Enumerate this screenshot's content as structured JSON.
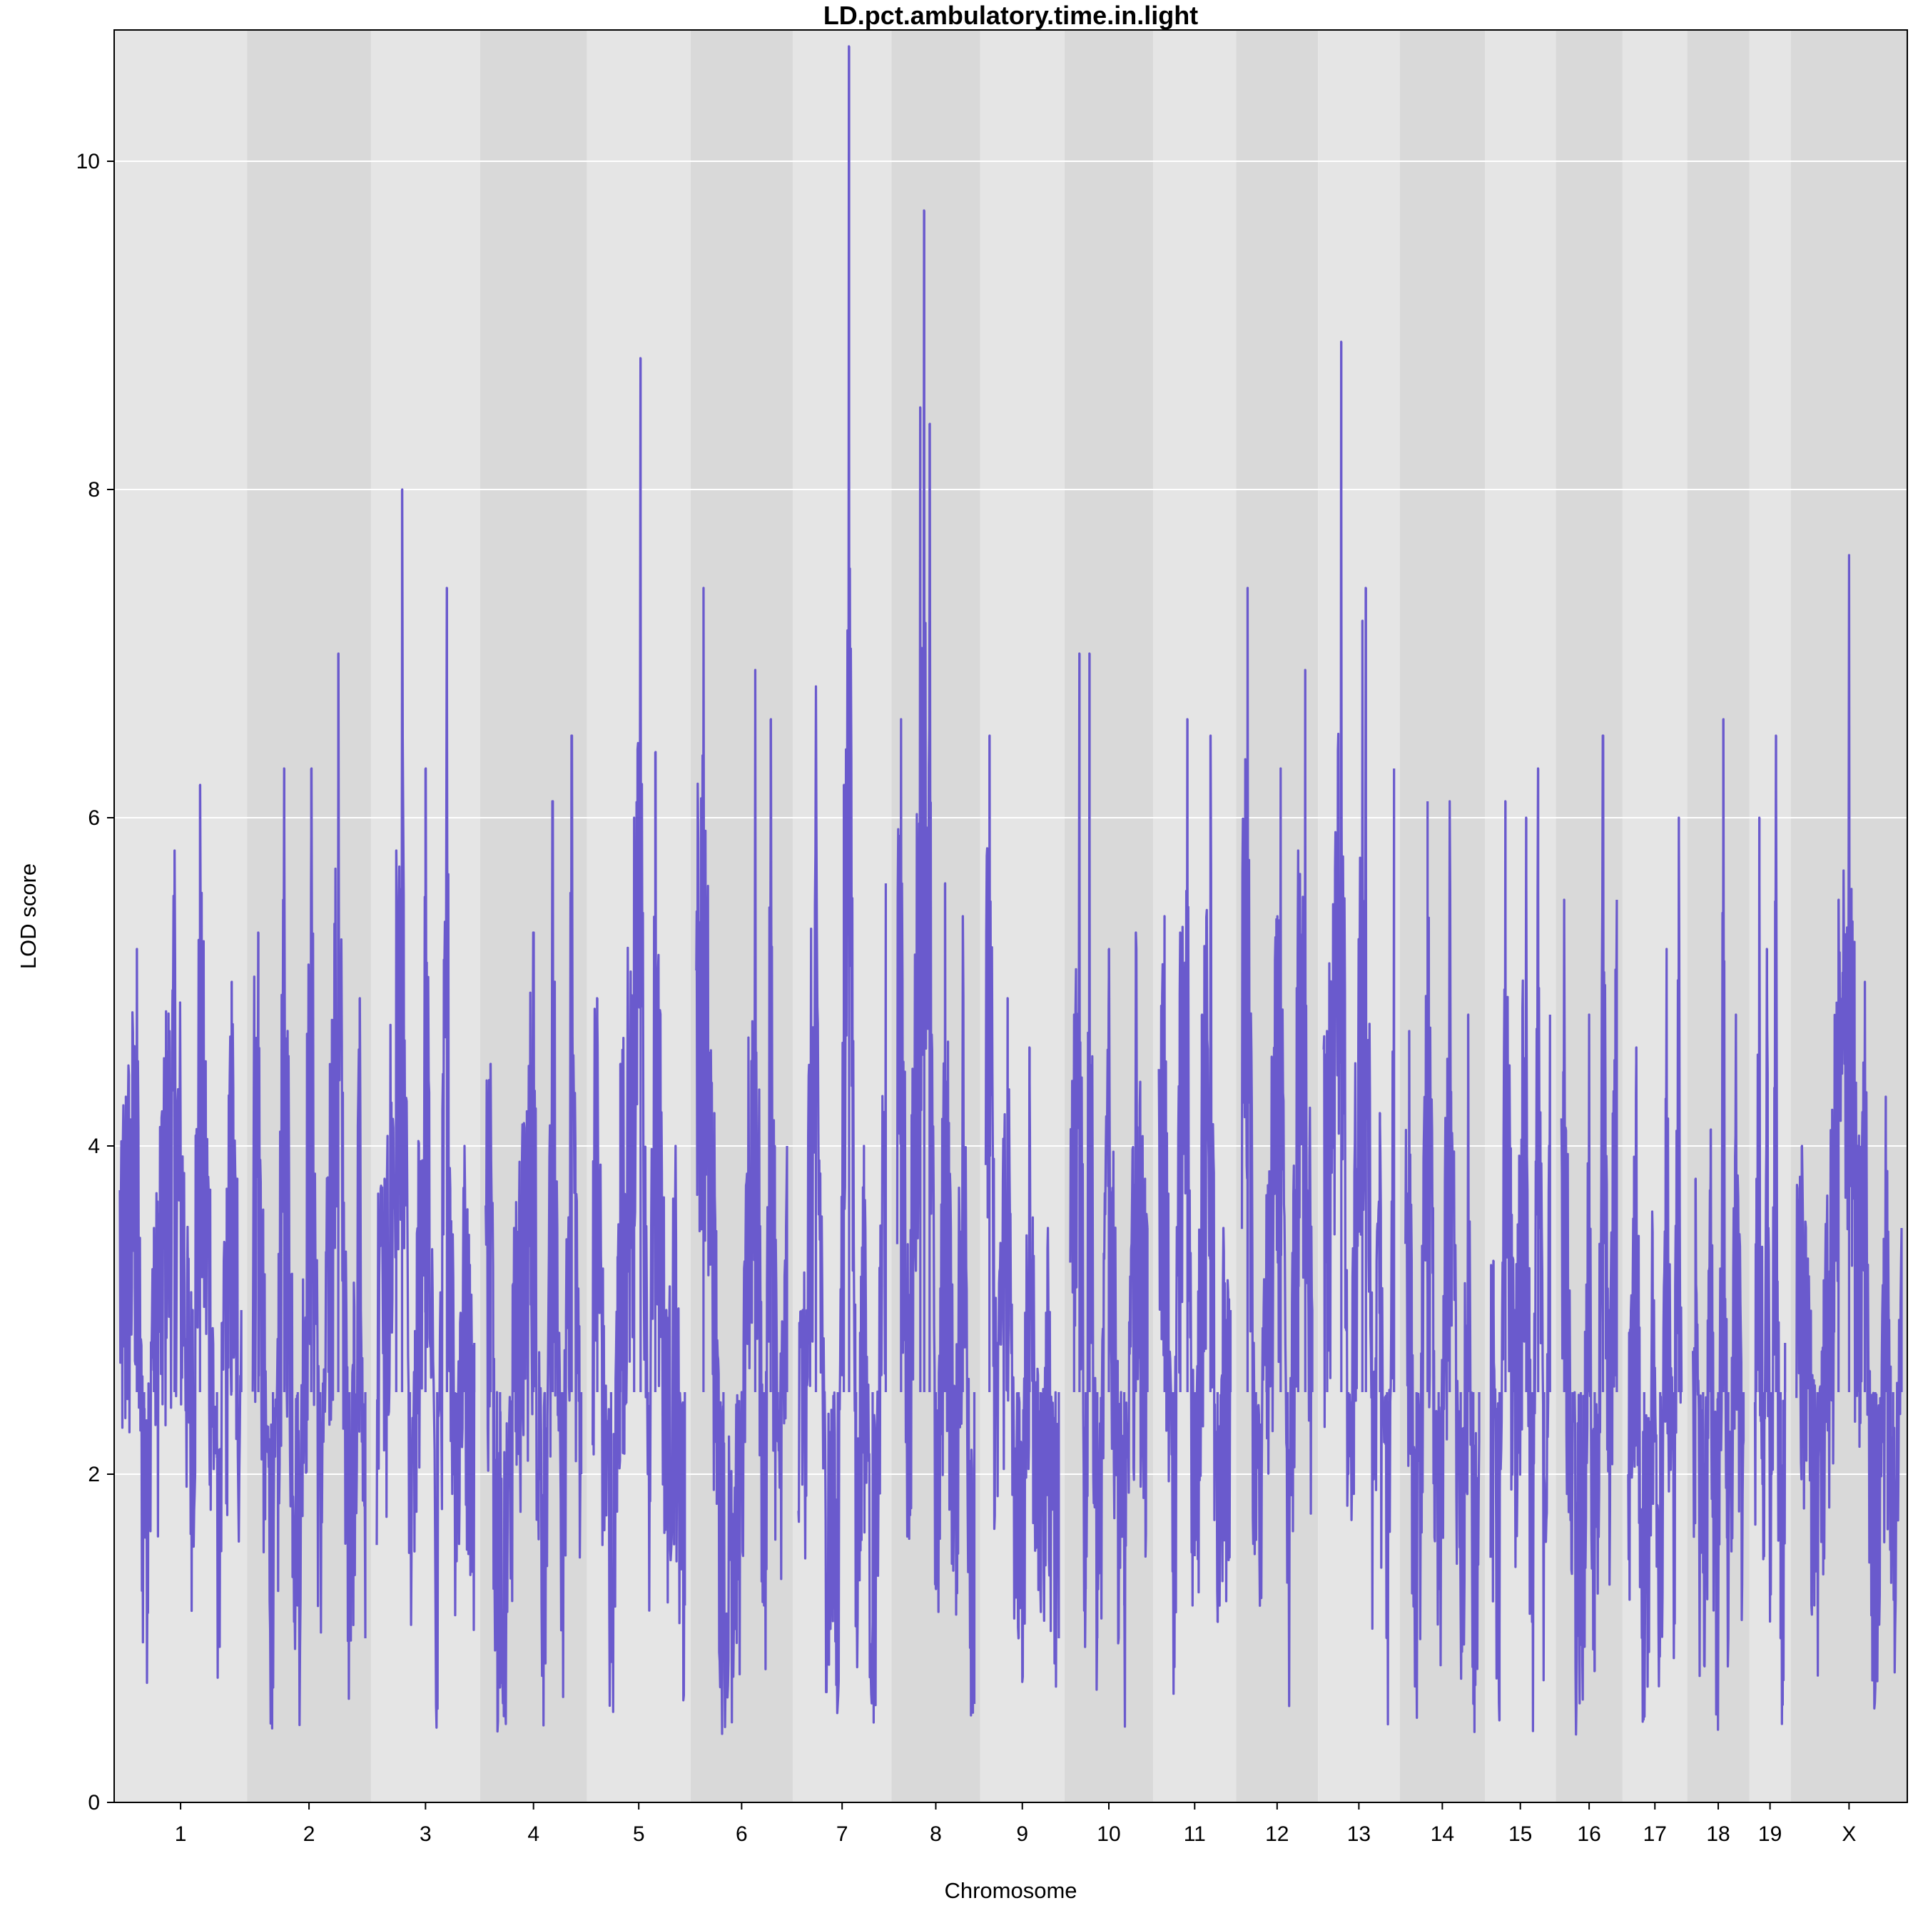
{
  "chart_data": {
    "type": "line",
    "title": "LD.pct.ambulatory.time.in.light",
    "xlabel": "Chromosome",
    "ylabel": "LOD score",
    "ylim": [
      0,
      10.8
    ],
    "yticks": [
      0,
      2,
      4,
      6,
      8,
      10
    ],
    "grid": true,
    "line_color": "#6A5ACD",
    "band_colors": [
      "#E5E5E5",
      "#D9D9D9"
    ],
    "chromosomes": [
      {
        "label": "1",
        "length": 195,
        "peaks": [
          [
            0.05,
            4.3
          ],
          [
            0.14,
            5.2
          ],
          [
            0.2,
            1.8
          ],
          [
            0.28,
            3.5
          ],
          [
            0.45,
            5.8
          ],
          [
            0.6,
            3.0
          ],
          [
            0.66,
            6.2
          ],
          [
            0.8,
            2.1
          ],
          [
            0.92,
            5.0
          ],
          [
            1.0,
            3.0
          ]
        ]
      },
      {
        "label": "2",
        "length": 182,
        "peaks": [
          [
            0.05,
            5.3
          ],
          [
            0.18,
            0.7
          ],
          [
            0.28,
            6.3
          ],
          [
            0.4,
            1.2
          ],
          [
            0.52,
            6.3
          ],
          [
            0.6,
            2.0
          ],
          [
            0.76,
            7.0
          ],
          [
            0.86,
            1.9
          ],
          [
            0.95,
            4.9
          ],
          [
            1.0,
            1.0
          ]
        ]
      },
      {
        "label": "3",
        "length": 160,
        "peaks": [
          [
            0.08,
            3.8
          ],
          [
            0.2,
            5.8
          ],
          [
            0.26,
            8.0
          ],
          [
            0.34,
            1.6
          ],
          [
            0.5,
            6.3
          ],
          [
            0.62,
            1.2
          ],
          [
            0.72,
            7.4
          ],
          [
            0.8,
            2.2
          ],
          [
            0.9,
            4.0
          ],
          [
            1.0,
            2.8
          ]
        ]
      },
      {
        "label": "4",
        "length": 157,
        "peaks": [
          [
            0.05,
            4.5
          ],
          [
            0.15,
            0.7
          ],
          [
            0.3,
            3.5
          ],
          [
            0.5,
            5.3
          ],
          [
            0.62,
            1.0
          ],
          [
            0.7,
            6.1
          ],
          [
            0.8,
            1.5
          ],
          [
            0.9,
            6.5
          ],
          [
            1.0,
            2.0
          ]
        ]
      },
      {
        "label": "5",
        "length": 152,
        "peaks": [
          [
            0.05,
            4.9
          ],
          [
            0.2,
            1.2
          ],
          [
            0.3,
            4.5
          ],
          [
            0.45,
            6.0
          ],
          [
            0.52,
            8.8
          ],
          [
            0.6,
            2.0
          ],
          [
            0.68,
            6.4
          ],
          [
            0.8,
            3.0
          ],
          [
            0.9,
            4.0
          ],
          [
            1.0,
            1.2
          ]
        ]
      },
      {
        "label": "6",
        "length": 150,
        "peaks": [
          [
            0.08,
            7.4
          ],
          [
            0.2,
            4.2
          ],
          [
            0.3,
            1.0
          ],
          [
            0.5,
            2.5
          ],
          [
            0.65,
            6.9
          ],
          [
            0.75,
            1.2
          ],
          [
            0.82,
            6.6
          ],
          [
            0.9,
            2.2
          ],
          [
            1.0,
            4.0
          ]
        ]
      },
      {
        "label": "7",
        "length": 145,
        "peaks": [
          [
            0.05,
            3.0
          ],
          [
            0.2,
            6.8
          ],
          [
            0.3,
            2.5
          ],
          [
            0.45,
            0.6
          ],
          [
            0.52,
            6.2
          ],
          [
            0.58,
            10.7
          ],
          [
            0.66,
            2.0
          ],
          [
            0.75,
            4.0
          ],
          [
            0.85,
            1.1
          ],
          [
            1.0,
            5.6
          ]
        ]
      },
      {
        "label": "8",
        "length": 130,
        "peaks": [
          [
            0.05,
            6.6
          ],
          [
            0.15,
            3.0
          ],
          [
            0.3,
            8.5
          ],
          [
            0.35,
            9.7
          ],
          [
            0.42,
            8.4
          ],
          [
            0.5,
            1.3
          ],
          [
            0.62,
            5.6
          ],
          [
            0.75,
            2.5
          ],
          [
            0.85,
            5.4
          ],
          [
            1.0,
            0.6
          ]
        ]
      },
      {
        "label": "9",
        "length": 124,
        "peaks": [
          [
            0.05,
            6.5
          ],
          [
            0.15,
            2.8
          ],
          [
            0.3,
            4.9
          ],
          [
            0.45,
            1.0
          ],
          [
            0.6,
            4.6
          ],
          [
            0.75,
            2.0
          ],
          [
            0.85,
            3.5
          ],
          [
            1.0,
            1.0
          ]
        ]
      },
      {
        "label": "10",
        "length": 130,
        "peaks": [
          [
            0.05,
            4.8
          ],
          [
            0.12,
            7.0
          ],
          [
            0.2,
            1.3
          ],
          [
            0.25,
            7.0
          ],
          [
            0.35,
            1.0
          ],
          [
            0.5,
            5.2
          ],
          [
            0.7,
            1.2
          ],
          [
            0.85,
            5.3
          ],
          [
            1.0,
            3.5
          ]
        ]
      },
      {
        "label": "11",
        "length": 122,
        "peaks": [
          [
            0.08,
            5.4
          ],
          [
            0.2,
            1.6
          ],
          [
            0.3,
            5.3
          ],
          [
            0.4,
            6.6
          ],
          [
            0.5,
            1.5
          ],
          [
            0.6,
            4.8
          ],
          [
            0.72,
            6.5
          ],
          [
            0.82,
            1.1
          ],
          [
            0.9,
            3.5
          ],
          [
            1.0,
            3.0
          ]
        ]
      },
      {
        "label": "12",
        "length": 120,
        "peaks": [
          [
            0.08,
            7.4
          ],
          [
            0.2,
            1.6
          ],
          [
            0.35,
            3.7
          ],
          [
            0.55,
            6.3
          ],
          [
            0.65,
            1.4
          ],
          [
            0.8,
            5.8
          ],
          [
            0.9,
            6.9
          ],
          [
            1.0,
            3.0
          ]
        ]
      },
      {
        "label": "13",
        "length": 120,
        "peaks": [
          [
            0.05,
            4.7
          ],
          [
            0.25,
            8.9
          ],
          [
            0.35,
            2.0
          ],
          [
            0.55,
            7.2
          ],
          [
            0.6,
            7.4
          ],
          [
            0.7,
            2.5
          ],
          [
            0.8,
            4.2
          ],
          [
            0.9,
            1.0
          ],
          [
            1.0,
            6.3
          ]
        ]
      },
      {
        "label": "14",
        "length": 125,
        "peaks": [
          [
            0.05,
            4.7
          ],
          [
            0.15,
            1.0
          ],
          [
            0.3,
            6.1
          ],
          [
            0.45,
            1.3
          ],
          [
            0.6,
            6.1
          ],
          [
            0.75,
            1.2
          ],
          [
            0.85,
            4.8
          ],
          [
            0.92,
            0.6
          ],
          [
            1.0,
            2.2
          ]
        ]
      },
      {
        "label": "15",
        "length": 104,
        "peaks": [
          [
            0.05,
            3.3
          ],
          [
            0.15,
            0.5
          ],
          [
            0.25,
            6.1
          ],
          [
            0.4,
            3.0
          ],
          [
            0.6,
            6.0
          ],
          [
            0.7,
            1.1
          ],
          [
            0.8,
            6.3
          ],
          [
            0.9,
            2.0
          ],
          [
            1.0,
            4.8
          ]
        ]
      },
      {
        "label": "16",
        "length": 98,
        "peaks": [
          [
            0.05,
            5.5
          ],
          [
            0.2,
            2.0
          ],
          [
            0.35,
            1.0
          ],
          [
            0.5,
            4.8
          ],
          [
            0.6,
            0.8
          ],
          [
            0.75,
            6.5
          ],
          [
            0.85,
            3.0
          ],
          [
            1.0,
            5.5
          ]
        ]
      },
      {
        "label": "17",
        "length": 95,
        "peaks": [
          [
            0.05,
            3.0
          ],
          [
            0.15,
            4.6
          ],
          [
            0.3,
            1.0
          ],
          [
            0.45,
            3.6
          ],
          [
            0.6,
            1.2
          ],
          [
            0.72,
            5.2
          ],
          [
            0.85,
            2.0
          ],
          [
            0.95,
            6.0
          ],
          [
            1.0,
            2.5
          ]
        ]
      },
      {
        "label": "18",
        "length": 91,
        "peaks": [
          [
            0.05,
            3.8
          ],
          [
            0.2,
            1.4
          ],
          [
            0.35,
            4.1
          ],
          [
            0.5,
            1.1
          ],
          [
            0.6,
            6.6
          ],
          [
            0.7,
            1.0
          ],
          [
            0.85,
            4.8
          ],
          [
            1.0,
            2.2
          ]
        ]
      },
      {
        "label": "19",
        "length": 61,
        "peaks": [
          [
            0.05,
            3.8
          ],
          [
            0.15,
            6.0
          ],
          [
            0.3,
            1.5
          ],
          [
            0.4,
            5.2
          ],
          [
            0.55,
            2.0
          ],
          [
            0.7,
            6.5
          ],
          [
            0.85,
            1.0
          ],
          [
            1.0,
            2.8
          ]
        ]
      },
      {
        "label": "X",
        "length": 171,
        "peaks": [
          [
            0.05,
            4.0
          ],
          [
            0.2,
            2.3
          ],
          [
            0.4,
            5.5
          ],
          [
            0.5,
            7.6
          ],
          [
            0.58,
            4.0
          ],
          [
            0.65,
            5.0
          ],
          [
            0.75,
            0.7
          ],
          [
            0.85,
            4.3
          ],
          [
            0.92,
            2.0
          ],
          [
            1.0,
            3.5
          ]
        ]
      }
    ]
  }
}
